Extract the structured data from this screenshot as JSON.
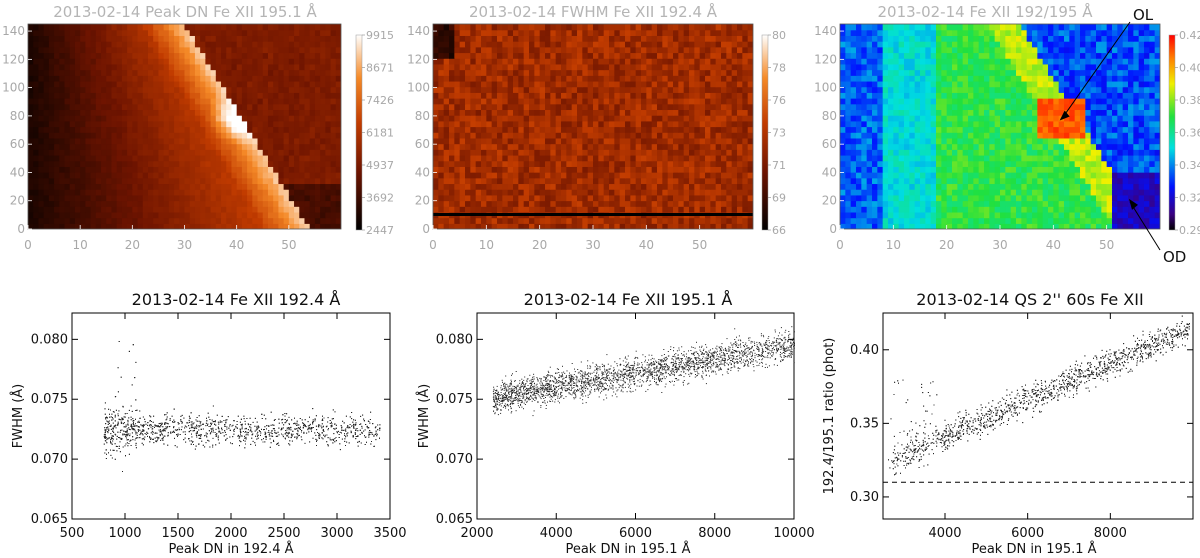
{
  "chart_data": [
    {
      "type": "heatmap",
      "title": "2013-02-14 Peak DN Fe XII 195.1 Å",
      "xlabel": "",
      "ylabel": "",
      "xlim": [
        0,
        60
      ],
      "ylim": [
        0,
        145
      ],
      "x_ticks": [
        "0",
        "10",
        "20",
        "30",
        "40",
        "50"
      ],
      "y_ticks": [
        "0",
        "20",
        "40",
        "60",
        "80",
        "100",
        "120",
        "140"
      ],
      "colorscale": "red-temperature",
      "colorbar_ticks": [
        "9915",
        "8671",
        "7426",
        "6181",
        "4937",
        "3692",
        "2447"
      ],
      "colorbar_range": [
        2447,
        9915
      ]
    },
    {
      "type": "heatmap",
      "title": "2013-02-14 FWHM  Fe XII 192.4 Å",
      "xlabel": "",
      "ylabel": "",
      "xlim": [
        0,
        60
      ],
      "ylim": [
        0,
        145
      ],
      "x_ticks": [
        "0",
        "10",
        "20",
        "30",
        "40",
        "50"
      ],
      "y_ticks": [
        "0",
        "20",
        "40",
        "60",
        "80",
        "100",
        "120",
        "140"
      ],
      "colorscale": "red-temperature",
      "colorbar_ticks": [
        "80",
        "78",
        "76",
        "73",
        "71",
        "69",
        "66"
      ],
      "colorbar_range": [
        66,
        80
      ]
    },
    {
      "type": "heatmap",
      "title": "2013-02-14  Fe XII 192/195 Å",
      "xlabel": "",
      "ylabel": "",
      "xlim": [
        0,
        60
      ],
      "ylim": [
        0,
        145
      ],
      "x_ticks": [
        "0",
        "10",
        "20",
        "30",
        "40",
        "50"
      ],
      "y_ticks": [
        "0",
        "20",
        "40",
        "60",
        "80",
        "100",
        "120",
        "140"
      ],
      "colorscale": "rainbow",
      "colorbar_ticks": [
        "0.42",
        "0.40",
        "0.38",
        "0.36",
        "0.34",
        "0.32",
        "0.29"
      ],
      "colorbar_range": [
        0.29,
        0.42
      ],
      "annotations": [
        {
          "text": "OL",
          "target": [
            41,
            76
          ]
        },
        {
          "text": "OD",
          "target": [
            54,
            22
          ]
        }
      ]
    },
    {
      "type": "scatter",
      "title": "2013-02-14 Fe XII 192.4 Å",
      "xlabel": "Peak DN in 192.4 Å",
      "ylabel": "FWHM (Å)",
      "xlim": [
        500,
        3500
      ],
      "ylim": [
        0.065,
        0.0822
      ],
      "x_ticks": [
        "500",
        "1000",
        "1500",
        "2000",
        "2500",
        "3000",
        "3500"
      ],
      "y_ticks": [
        "0.065",
        "0.070",
        "0.075",
        "0.080"
      ],
      "points_summary": "dense cloud; FWHM ~0.0725 centred, x 800-3400"
    },
    {
      "type": "scatter",
      "title": "2013-02-14 Fe XII 195.1 Å",
      "xlabel": "Peak DN in 195.1 Å",
      "ylabel": "FWHM (Å)",
      "xlim": [
        2000,
        10000
      ],
      "ylim": [
        0.065,
        0.0822
      ],
      "x_ticks": [
        "2000",
        "4000",
        "6000",
        "8000",
        "10000"
      ],
      "y_ticks": [
        "0.065",
        "0.070",
        "0.075",
        "0.080"
      ],
      "points_summary": "rising trend from 0.0755 at 3000 to 0.0790 at 9000"
    },
    {
      "type": "scatter",
      "title": "2013-02-14 QS 2'' 60s Fe XII",
      "xlabel": "Peak DN in 195.1 Å",
      "ylabel": "192.4/195.1 ratio (phot)",
      "xlim": [
        2500,
        10000
      ],
      "ylim": [
        0.285,
        0.425
      ],
      "x_ticks": [
        "4000",
        "6000",
        "8000"
      ],
      "y_ticks": [
        "0.30",
        "0.35",
        "0.40"
      ],
      "reference_line": 0.31,
      "points_summary": "rising trend from 0.335 at 3500 to 0.41 at 9500"
    }
  ]
}
